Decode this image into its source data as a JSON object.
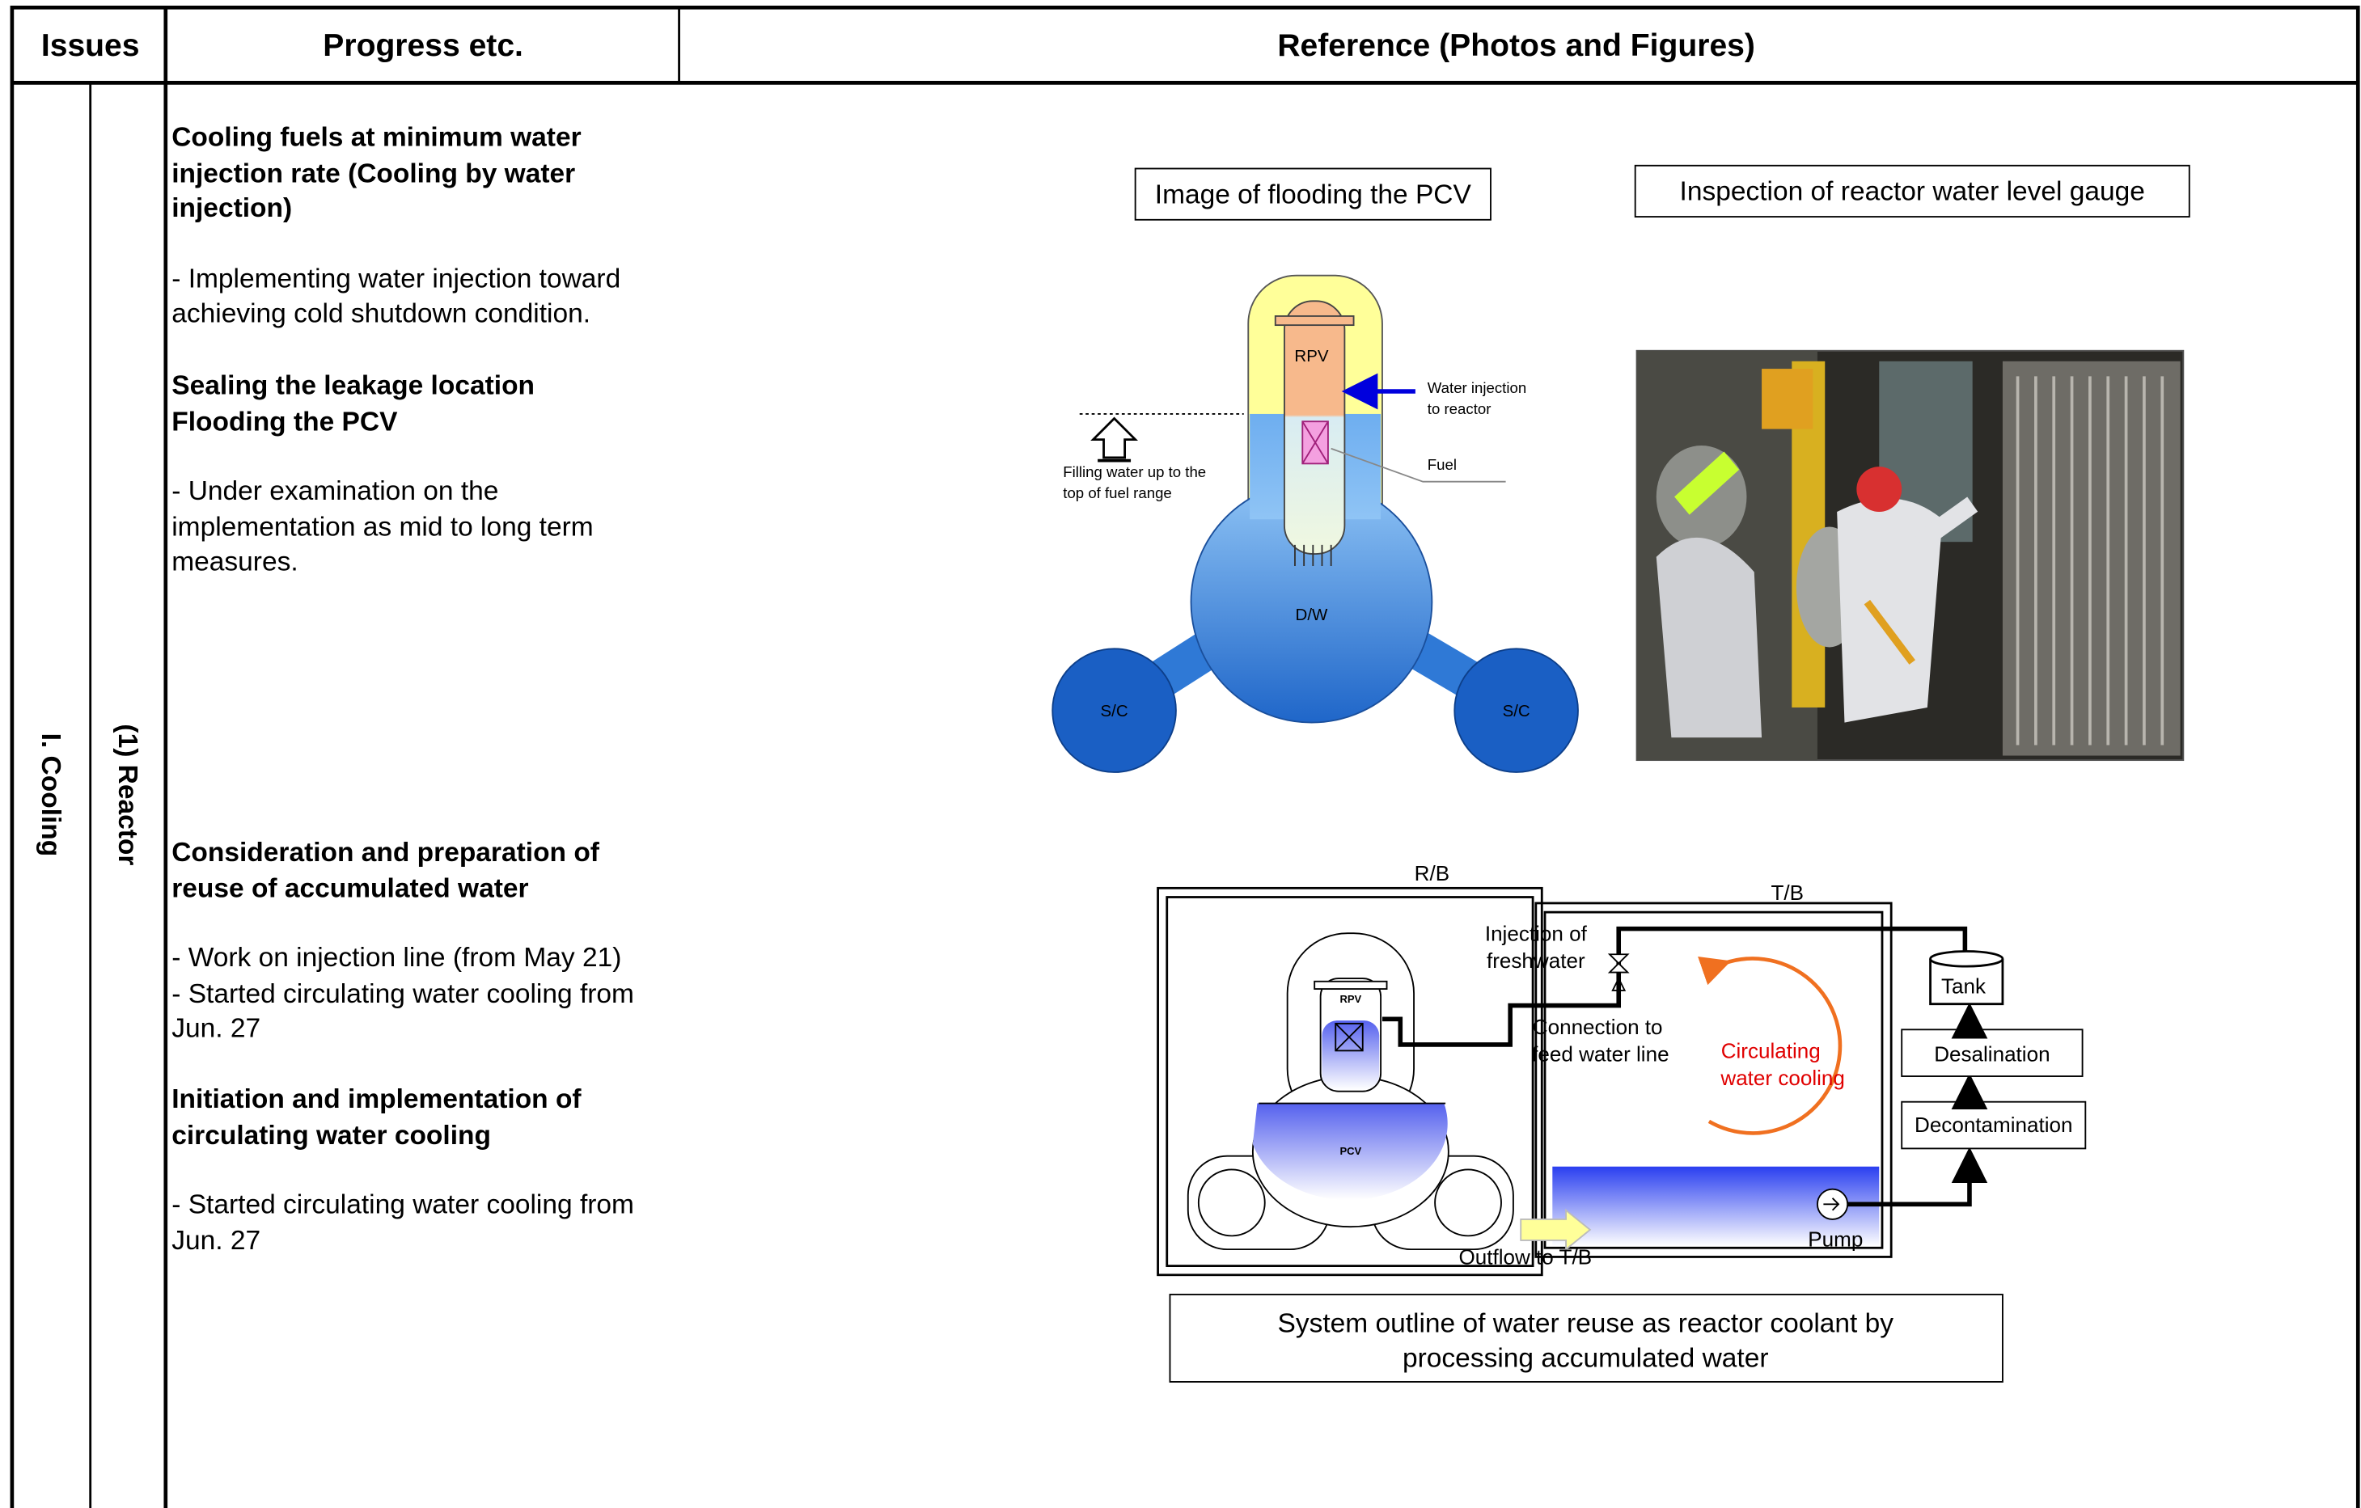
{
  "header": {
    "issues": "Issues",
    "progress": "Progress etc.",
    "reference": "Reference (Photos and Figures)"
  },
  "row": {
    "issue": "I. Cooling",
    "sub_issue": "(1) Reactor"
  },
  "progress": [
    {
      "heading": [
        "Cooling fuels at minimum water injection rate (Cooling by water injection)"
      ],
      "items": [
        "- Implementing water injection toward achieving cold shutdown condition."
      ]
    },
    {
      "heading": [
        "Sealing the leakage location",
        "Flooding the PCV"
      ],
      "items": [
        "- Under examination on the implementation as mid to long term measures."
      ]
    },
    {
      "heading": [
        "Consideration and preparation of reuse of accumulated water"
      ],
      "items": [
        "- Work on injection line (from May 21)",
        "- Started circulating water cooling from Jun. 27"
      ]
    },
    {
      "heading": [
        "Initiation and implementation of circulating water cooling"
      ],
      "items": [
        "- Started circulating water cooling from Jun. 27"
      ]
    }
  ],
  "figures": {
    "flooding": {
      "caption": "Image of flooding the PCV",
      "labels": {
        "rpv": "RPV",
        "dw": "D/W",
        "sc_left": "S/C",
        "sc_right": "S/C",
        "injection": [
          "Water injection",
          "to reactor"
        ],
        "fuel": "Fuel",
        "filling": [
          "Filling water up to the",
          "top of fuel range"
        ]
      }
    },
    "inspection": {
      "caption": "Inspection of reactor water level gauge"
    },
    "system": {
      "caption": [
        "System outline of water reuse as reactor coolant by",
        "processing accumulated water"
      ],
      "labels": {
        "rb": "R/B",
        "tb": "T/B",
        "rpv": "RPV",
        "pcv": "PCV",
        "freshwater": [
          "Injection of",
          "freshwater"
        ],
        "feed": [
          "Connection to",
          "feed water line"
        ],
        "circulating": [
          "Circulating",
          "water cooling"
        ],
        "tank": "Tank",
        "desalination": "Desalination",
        "decontamination": "Decontamination",
        "pump": "Pump",
        "outflow": "Outflow to T/B"
      }
    }
  }
}
